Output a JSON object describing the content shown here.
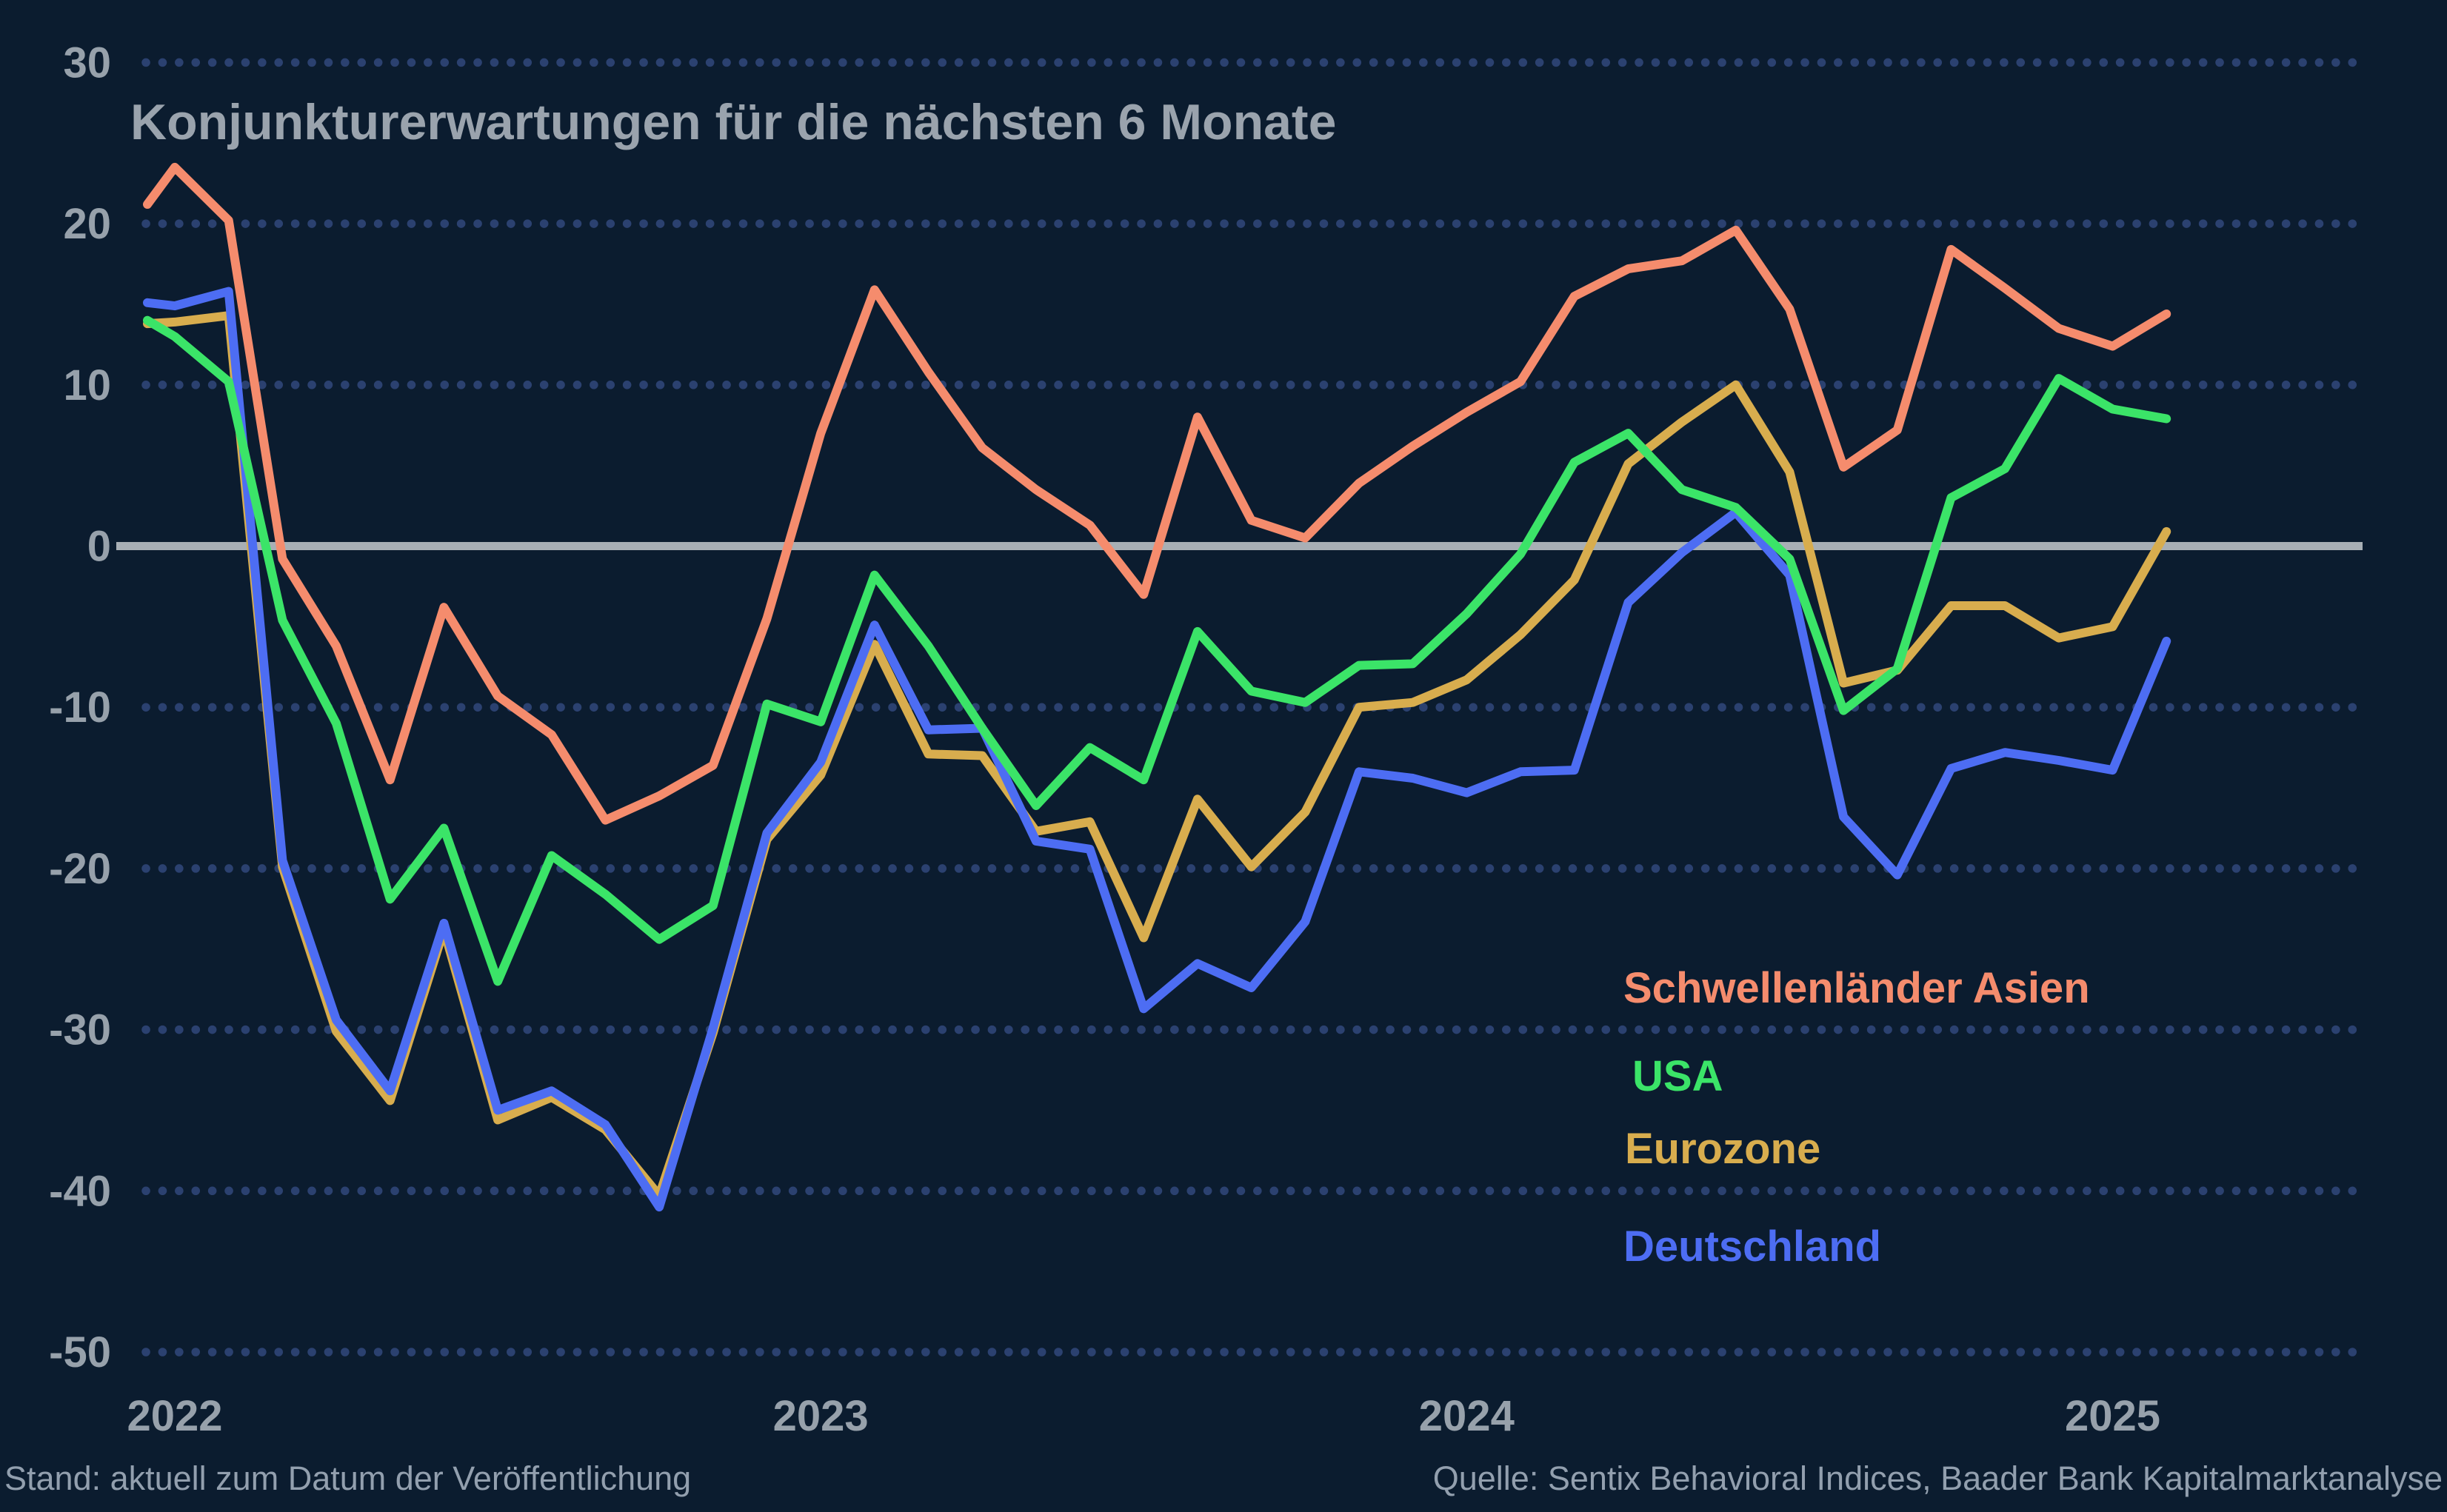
{
  "title": "Konjunkturerwartungen für die nächsten 6 Monate",
  "footer": {
    "left": "Stand: aktuell zum Datum der Veröffentlichung",
    "right": "Quelle: Sentix Behavioral Indices, Baader Bank Kapitalmarktanalyse"
  },
  "colors": {
    "background": "#0b1c2f",
    "grid_dots": "#2b4170",
    "zero_line": "#a8afb5",
    "title_text": "#9aa3ad",
    "tick_text": "#97a1ab",
    "footer_text": "#929fae"
  },
  "legend": [
    {
      "label": "Schwellenländer Asien",
      "color": "#f58c6d"
    },
    {
      "label": "USA",
      "color": "#3be468"
    },
    {
      "label": "Eurozone",
      "color": "#d8ad4e"
    },
    {
      "label": "Deutschland",
      "color": "#4d6df3"
    }
  ],
  "chart_data": {
    "type": "line",
    "title": "Konjunkturerwartungen für die nächsten 6 Monate",
    "x_months": [
      "2021-12",
      "2022-01",
      "2022-02",
      "2022-03",
      "2022-04",
      "2022-05",
      "2022-06",
      "2022-07",
      "2022-08",
      "2022-09",
      "2022-10",
      "2022-11",
      "2022-12",
      "2023-01",
      "2023-02",
      "2023-03",
      "2023-04",
      "2023-05",
      "2023-06",
      "2023-07",
      "2023-08",
      "2023-09",
      "2023-10",
      "2023-11",
      "2023-12",
      "2024-01",
      "2024-02",
      "2024-03",
      "2024-04",
      "2024-05",
      "2024-06",
      "2024-07",
      "2024-08",
      "2024-09",
      "2024-10",
      "2024-11",
      "2024-12",
      "2025-01",
      "2025-02"
    ],
    "x_tick_labels": [
      "2022",
      "2023",
      "2024",
      "2025"
    ],
    "x_tick_month_indices": [
      1,
      13,
      25,
      37
    ],
    "y_ticks": [
      30,
      20,
      10,
      0,
      -10,
      -20,
      -30,
      -40,
      -50
    ],
    "ylim": [
      -50,
      30
    ],
    "grid": "dotted horizontal line at each y tick, solid light line at 0",
    "legend_position": "right-center, stacked colored text labels",
    "series": [
      {
        "name": "Schwellenländer Asien",
        "color": "#f58c6d",
        "values": [
          21.2,
          23.5,
          20.2,
          -0.8,
          -6.2,
          -14.5,
          -3.8,
          -9.3,
          -11.7,
          -17.0,
          -15.5,
          -13.6,
          -4.5,
          7.0,
          15.9,
          10.8,
          6.1,
          3.5,
          1.3,
          -3.0,
          8.0,
          1.6,
          0.5,
          3.9,
          6.2,
          8.3,
          10.2,
          15.5,
          17.2,
          17.7,
          19.6,
          14.7,
          4.9,
          7.2,
          18.4,
          16.0,
          13.5,
          12.4,
          14.4
        ]
      },
      {
        "name": "Eurozone",
        "color": "#d8ad4e",
        "values": [
          13.8,
          13.9,
          14.3,
          -19.9,
          -30.1,
          -34.4,
          -23.8,
          -35.6,
          -34.2,
          -36.2,
          -40.3,
          -30.2,
          -18.2,
          -14.2,
          -6.1,
          -12.9,
          -13.0,
          -17.7,
          -17.1,
          -24.3,
          -15.7,
          -19.9,
          -16.5,
          -10.0,
          -9.7,
          -8.3,
          -5.5,
          -2.1,
          5.1,
          7.7,
          10.0,
          4.6,
          -8.5,
          -7.7,
          -3.7,
          -3.7,
          -5.7,
          -5.0,
          0.9
        ]
      },
      {
        "name": "Deutschland",
        "color": "#4d6df3",
        "values": [
          15.1,
          14.9,
          15.8,
          -19.5,
          -29.4,
          -33.8,
          -23.4,
          -35.0,
          -33.8,
          -35.9,
          -41.0,
          -29.9,
          -17.8,
          -13.4,
          -4.9,
          -11.4,
          -11.3,
          -18.3,
          -18.8,
          -28.7,
          -25.9,
          -27.4,
          -23.3,
          -14.0,
          -14.4,
          -15.3,
          -14.0,
          -13.9,
          -3.5,
          -0.4,
          2.1,
          -1.8,
          -16.8,
          -20.4,
          -13.8,
          -12.8,
          -13.3,
          -13.9,
          -5.9
        ]
      },
      {
        "name": "USA",
        "color": "#3be468",
        "values": [
          14.0,
          13.0,
          10.2,
          -4.6,
          -11.0,
          -21.9,
          -17.5,
          -27.0,
          -19.2,
          -21.6,
          -24.4,
          -22.3,
          -9.8,
          -10.9,
          -1.8,
          -6.2,
          -11.3,
          -16.1,
          -12.5,
          -14.5,
          -5.3,
          -9.0,
          -9.7,
          -7.4,
          -7.3,
          -4.2,
          -0.5,
          5.2,
          7.0,
          3.5,
          2.4,
          -0.8,
          -10.2,
          -7.6,
          3.0,
          4.8,
          10.4,
          8.5,
          7.9
        ]
      }
    ]
  }
}
